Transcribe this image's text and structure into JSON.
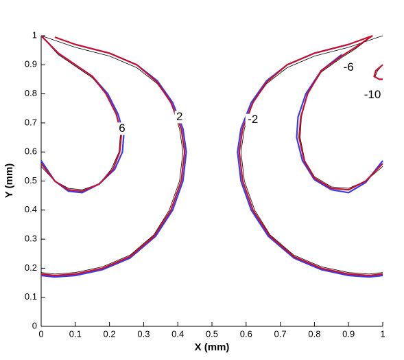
{
  "chart_data": {
    "type": "line",
    "x_label": "X (mm)",
    "y_label": "Y (mm)",
    "xlim": [
      0,
      1
    ],
    "ylim": [
      0,
      1
    ],
    "xticks": [
      0,
      0.1,
      0.2,
      0.3,
      0.4,
      0.5,
      0.6,
      0.7,
      0.8,
      0.9,
      1
    ],
    "yticks": [
      0,
      0.1,
      0.2,
      0.3,
      0.4,
      0.5,
      0.6,
      0.7,
      0.8,
      0.9,
      1
    ],
    "series": [
      {
        "color": "#000000",
        "x": [
          0,
          0.05,
          0.1,
          0.15,
          0.19,
          0.22,
          0.232,
          0.228,
          0.205,
          0.17,
          0.12,
          0.08,
          0.04,
          0,
          null,
          0,
          0.1,
          0.2,
          0.28,
          0.34,
          0.38,
          0.405,
          0.415,
          0.405,
          0.375,
          0.33,
          0.26,
          0.18,
          0.1,
          0.04,
          0,
          null,
          1,
          0.9,
          0.8,
          0.72,
          0.66,
          0.62,
          0.595,
          0.585,
          0.595,
          0.625,
          0.67,
          0.74,
          0.82,
          0.9,
          0.96,
          1,
          null,
          0.97,
          0.92,
          0.88,
          0.82,
          0.78,
          0.762,
          0.758,
          0.772,
          0.8,
          0.85,
          0.9,
          0.95,
          1,
          null,
          1,
          0.985,
          0.978,
          0.99,
          1
        ],
        "y": [
          1,
          0.935,
          0.895,
          0.855,
          0.8,
          0.73,
          0.66,
          0.6,
          0.54,
          0.49,
          0.47,
          0.475,
          0.5,
          0.55,
          null,
          1,
          0.96,
          0.93,
          0.89,
          0.835,
          0.77,
          0.68,
          0.6,
          0.5,
          0.4,
          0.315,
          0.245,
          0.205,
          0.185,
          0.18,
          0.185,
          null,
          1,
          0.96,
          0.93,
          0.89,
          0.835,
          0.77,
          0.68,
          0.6,
          0.5,
          0.4,
          0.315,
          0.245,
          0.205,
          0.185,
          0.18,
          0.185,
          null,
          1,
          0.955,
          0.925,
          0.875,
          0.8,
          0.72,
          0.65,
          0.57,
          0.515,
          0.48,
          0.475,
          0.5,
          0.55,
          null,
          0.9,
          0.88,
          0.86,
          0.85,
          0.85
        ]
      },
      {
        "color": "#3a3ae8",
        "x": [
          0,
          0.05,
          0.1,
          0.15,
          0.195,
          0.225,
          0.242,
          0.238,
          0.215,
          0.17,
          0.12,
          0.08,
          0.04,
          0,
          null,
          0.1,
          0.2,
          0.28,
          0.34,
          0.385,
          0.415,
          0.425,
          0.415,
          0.385,
          0.335,
          0.26,
          0.18,
          0.1,
          0.04,
          0,
          null,
          0.9,
          0.8,
          0.72,
          0.66,
          0.615,
          0.585,
          0.575,
          0.585,
          0.615,
          0.665,
          0.74,
          0.82,
          0.9,
          0.96,
          1,
          null,
          0.88,
          0.82,
          0.775,
          0.752,
          0.748,
          0.765,
          0.8,
          0.85,
          0.9,
          0.95,
          1
        ],
        "y": [
          1,
          0.94,
          0.9,
          0.86,
          0.8,
          0.73,
          0.66,
          0.6,
          0.54,
          0.49,
          0.46,
          0.465,
          0.5,
          0.57,
          null,
          0.97,
          0.94,
          0.9,
          0.845,
          0.77,
          0.68,
          0.6,
          0.5,
          0.4,
          0.31,
          0.235,
          0.195,
          0.175,
          0.17,
          0.175,
          null,
          0.97,
          0.94,
          0.9,
          0.845,
          0.77,
          0.68,
          0.6,
          0.5,
          0.4,
          0.31,
          0.235,
          0.195,
          0.175,
          0.17,
          0.175,
          null,
          0.935,
          0.88,
          0.8,
          0.72,
          0.65,
          0.57,
          0.505,
          0.47,
          0.46,
          0.495,
          0.57
        ]
      },
      {
        "color": "#c8102e",
        "x": [
          0,
          0.05,
          0.1,
          0.15,
          0.19,
          0.22,
          0.235,
          0.23,
          0.21,
          0.17,
          0.12,
          0.08,
          0.04,
          0,
          null,
          0.04,
          0.1,
          0.2,
          0.28,
          0.34,
          0.38,
          0.41,
          0.42,
          0.41,
          0.38,
          0.33,
          0.26,
          0.18,
          0.1,
          0.04,
          0,
          null,
          0.97,
          0.9,
          0.8,
          0.72,
          0.66,
          0.62,
          0.59,
          0.58,
          0.59,
          0.62,
          0.67,
          0.74,
          0.82,
          0.9,
          0.96,
          1,
          null,
          0.97,
          0.92,
          0.88,
          0.82,
          0.78,
          0.76,
          0.755,
          0.77,
          0.8,
          0.85,
          0.9,
          0.95,
          1,
          null,
          1,
          0.98,
          0.975,
          0.99,
          1
        ],
        "y": [
          1,
          0.94,
          0.9,
          0.86,
          0.8,
          0.73,
          0.66,
          0.6,
          0.54,
          0.49,
          0.465,
          0.47,
          0.5,
          0.56,
          null,
          0.995,
          0.97,
          0.94,
          0.9,
          0.84,
          0.77,
          0.68,
          0.6,
          0.5,
          0.4,
          0.31,
          0.24,
          0.2,
          0.18,
          0.175,
          0.18,
          null,
          1,
          0.97,
          0.94,
          0.9,
          0.84,
          0.77,
          0.68,
          0.6,
          0.5,
          0.4,
          0.31,
          0.24,
          0.2,
          0.18,
          0.175,
          0.18,
          null,
          1,
          0.96,
          0.93,
          0.88,
          0.8,
          0.72,
          0.65,
          0.57,
          0.51,
          0.475,
          0.47,
          0.5,
          0.56,
          null,
          0.9,
          0.88,
          0.86,
          0.85,
          0.85
        ]
      }
    ],
    "contour_labels": [
      {
        "text": "6",
        "x": 0.237,
        "y": 0.68
      },
      {
        "text": "2",
        "x": 0.405,
        "y": 0.72
      },
      {
        "text": "-2",
        "x": 0.62,
        "y": 0.71
      },
      {
        "text": "-6",
        "x": 0.9,
        "y": 0.89
      },
      {
        "text": "-10",
        "x": 0.97,
        "y": 0.795
      }
    ]
  }
}
